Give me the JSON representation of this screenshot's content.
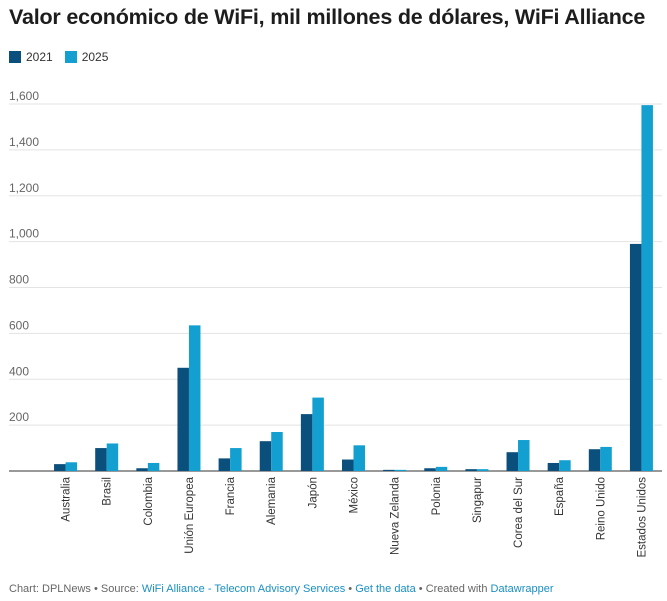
{
  "title": "Valor económico de WiFi, mil millones de dólares, WiFi Alliance",
  "legend": [
    {
      "label": "2021",
      "color": "#0b4f7c"
    },
    {
      "label": "2025",
      "color": "#13a0d0"
    }
  ],
  "footer": {
    "prefix": "Chart: DPLNews • Source: ",
    "source": "WiFi Alliance - Telecom Advisory Services",
    "sep1": " • ",
    "get_data": "Get the data",
    "sep2": " • Created with ",
    "tool": "Datawrapper"
  },
  "chart_data": {
    "type": "bar",
    "categories": [
      "Australia",
      "Brasil",
      "Colombia",
      "Unión Europea",
      "Francia",
      "Alemania",
      "Japón",
      "México",
      "Nueva Zelanda",
      "Polonia",
      "Singapur",
      "Corea del Sur",
      "España",
      "Reino Unido",
      "Estados Unidos"
    ],
    "series": [
      {
        "name": "2021",
        "color": "#0b4f7c",
        "values": [
          30,
          100,
          12,
          450,
          55,
          130,
          248,
          50,
          5,
          12,
          8,
          82,
          35,
          95,
          990
        ]
      },
      {
        "name": "2025",
        "color": "#13a0d0",
        "values": [
          38,
          120,
          35,
          635,
          100,
          170,
          320,
          112,
          5,
          18,
          8,
          135,
          47,
          105,
          1595
        ]
      }
    ],
    "ylim": [
      0,
      1600
    ],
    "yticks": [
      200,
      400,
      600,
      800,
      1000,
      1200,
      1400,
      1600
    ],
    "ytick_labels": [
      "200",
      "400",
      "600",
      "800",
      "1,000",
      "1,200",
      "1,400",
      "1,600"
    ],
    "grid": true,
    "xlabel": "",
    "ylabel": ""
  }
}
